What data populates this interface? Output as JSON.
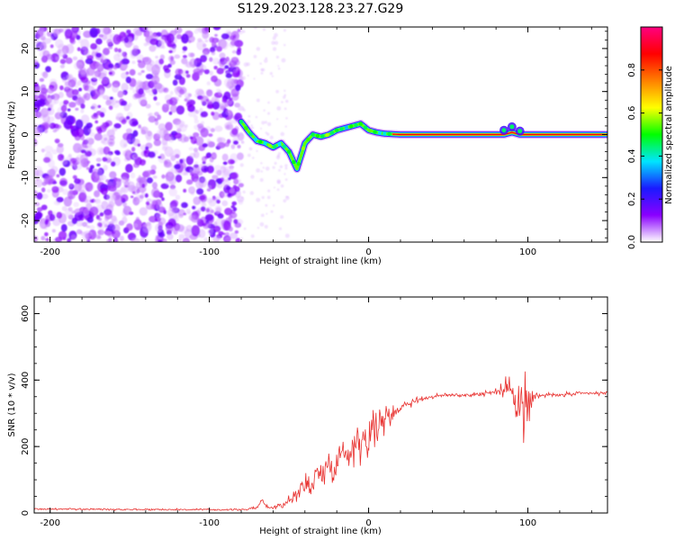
{
  "figure": {
    "title": "S129.2023.128.23.27.G29"
  },
  "chart_data": [
    {
      "type": "heatmap",
      "xlabel": "Height of straight line (km)",
      "ylabel": "Frequency (Hz)",
      "xlim": [
        -210,
        150
      ],
      "ylim": [
        -25,
        25
      ],
      "x_ticks": [
        -200,
        -100,
        0,
        100
      ],
      "y_ticks": [
        -20,
        -10,
        0,
        10,
        20
      ],
      "x_tick_labels": [
        "-200",
        "-100",
        "0",
        "100"
      ],
      "y_tick_labels": [
        "-20",
        "-10",
        "0",
        "10",
        "20"
      ],
      "noise_region_x": [
        -210,
        -80
      ],
      "ridge": {
        "x": [
          -80,
          -75,
          -70,
          -65,
          -60,
          -55,
          -50,
          -45,
          -40,
          -35,
          -30,
          -25,
          -20,
          -15,
          -10,
          -5,
          0,
          5,
          10,
          20,
          30,
          40,
          50,
          60,
          70,
          80,
          85,
          90,
          95,
          100,
          110,
          120,
          130,
          140,
          150
        ],
        "y": [
          3,
          0.5,
          -1.5,
          -2,
          -3,
          -2,
          -4,
          -8,
          -2,
          0,
          -0.5,
          0,
          1,
          1.5,
          2,
          2.5,
          1,
          0.5,
          0.2,
          0,
          0,
          0,
          0,
          0,
          0,
          0,
          0,
          0.5,
          0,
          0,
          0,
          0,
          0,
          0,
          0
        ]
      },
      "colorbar": {
        "label": "Normalized spectral amplitude",
        "range": [
          0,
          1
        ],
        "ticks": [
          0.0,
          0.2,
          0.4,
          0.6,
          0.8
        ],
        "tick_labels": [
          "0.0",
          "0.2",
          "0.4",
          "0.6",
          "0.8"
        ],
        "colors": [
          "#ffffff",
          "#8a00ff",
          "#1a1aff",
          "#00e5ff",
          "#00ff00",
          "#ffff00",
          "#ff8000",
          "#ff0000",
          "#ff0080"
        ]
      }
    },
    {
      "type": "line",
      "xlabel": "Height of straight line (km)",
      "ylabel": "SNR (10 * v/v)",
      "xlim": [
        -210,
        150
      ],
      "ylim": [
        0,
        650
      ],
      "x_ticks": [
        -200,
        -100,
        0,
        100
      ],
      "y_ticks": [
        0,
        200,
        400,
        600
      ],
      "x_tick_labels": [
        "-200",
        "-100",
        "0",
        "100"
      ],
      "y_tick_labels": [
        "0",
        "200",
        "400",
        "600"
      ],
      "series": [
        {
          "color": "#e8312f",
          "envelope": {
            "x": [
              -210,
              -100,
              -80,
              -70,
              -67,
              -64,
              -60,
              -50,
              -40,
              -30,
              -20,
              -10,
              0,
              10,
              20,
              30,
              40,
              50,
              60,
              70,
              80,
              85,
              90,
              95,
              98,
              100,
              105,
              110,
              120,
              130,
              140,
              150
            ],
            "y": [
              12,
              10,
              10,
              15,
              40,
              20,
              15,
              35,
              80,
              120,
              160,
              200,
              240,
              280,
              320,
              340,
              350,
              355,
              355,
              358,
              365,
              370,
              380,
              330,
              310,
              320,
              350,
              355,
              355,
              358,
              360,
              360
            ]
          },
          "noise_amplitude": {
            "x": [
              -210,
              -80,
              -60,
              -50,
              -40,
              -20,
              -10,
              0,
              10,
              20,
              30,
              40,
              60,
              80,
              90,
              95,
              98,
              100,
              105,
              110,
              150
            ],
            "y": [
              4,
              4,
              8,
              30,
              60,
              80,
              90,
              100,
              60,
              30,
              15,
              10,
              10,
              15,
              60,
              140,
              260,
              120,
              30,
              10,
              10
            ]
          }
        }
      ]
    }
  ]
}
